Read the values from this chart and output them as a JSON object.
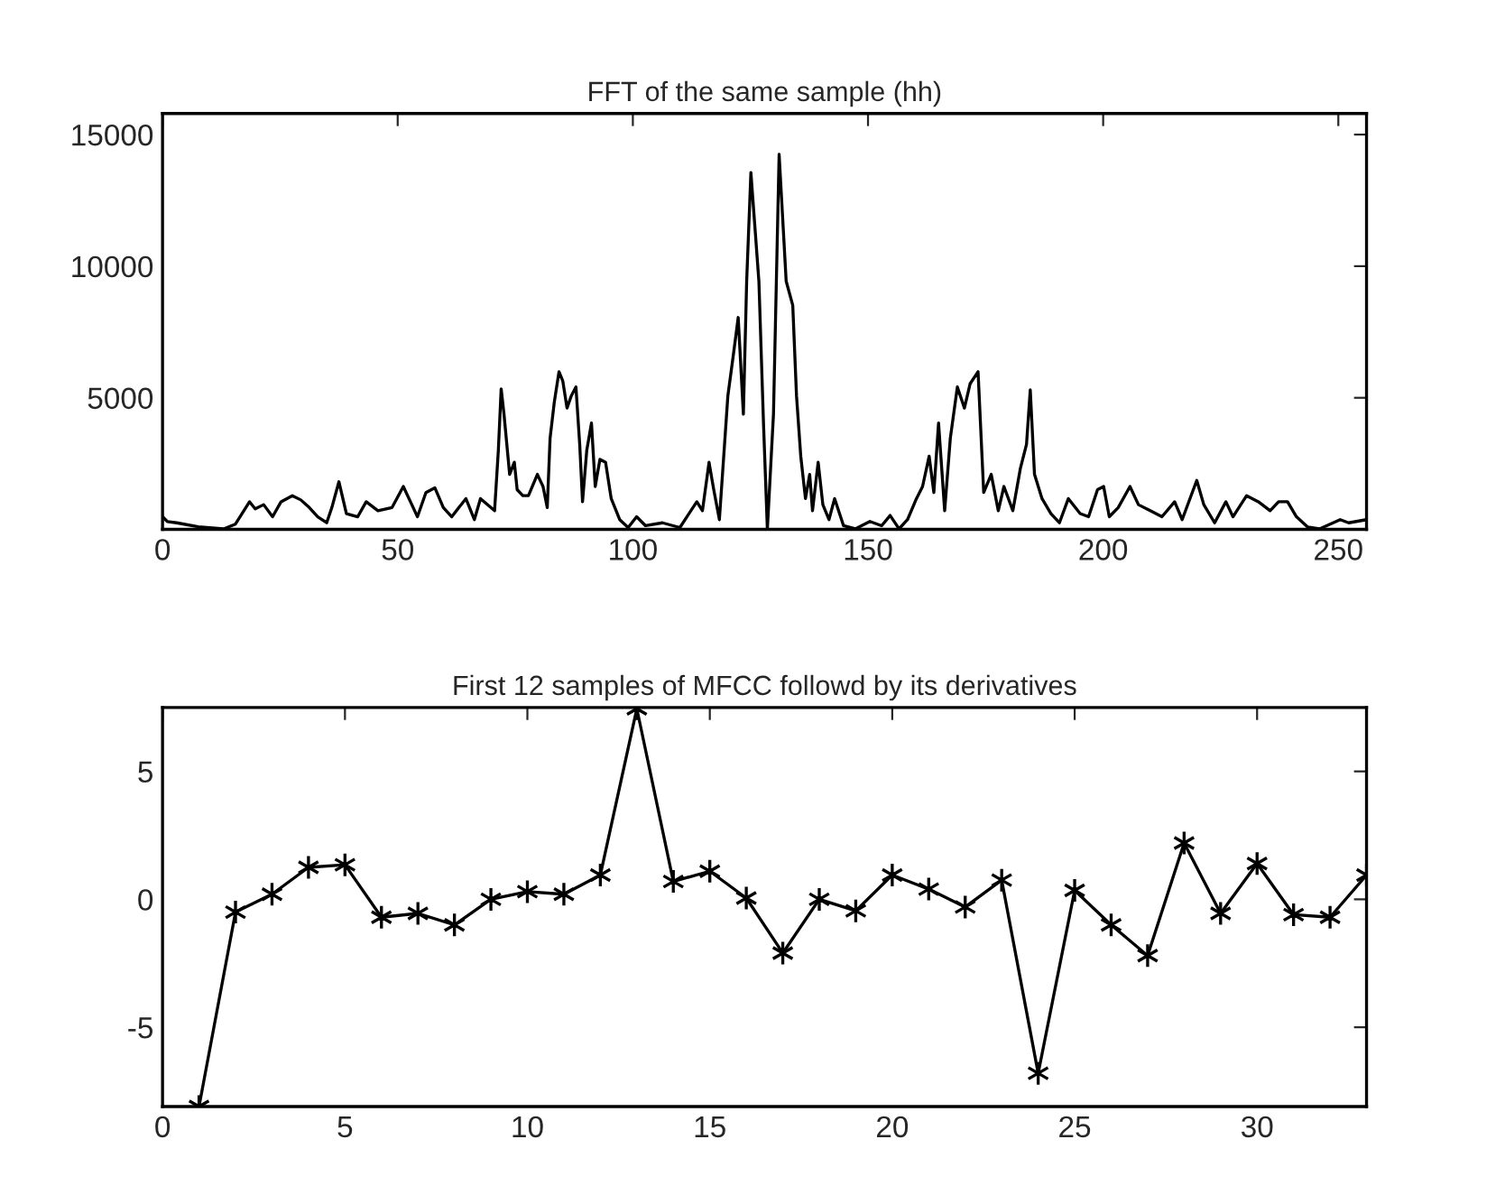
{
  "chart_data": [
    {
      "type": "line",
      "title": "FFT of the same sample (hh)",
      "xlim": [
        0,
        256
      ],
      "xticks": [
        0,
        50,
        100,
        150,
        200,
        250
      ],
      "ylim": [
        0,
        15800
      ],
      "yticks": [
        5000,
        10000,
        15000
      ],
      "grid": false,
      "legend": false,
      "marker": "none",
      "line_style": "solid",
      "series": [
        {
          "color": "#000000",
          "x": [
            0,
            1,
            3,
            7.6,
            13,
            15.5,
            18.5,
            19.7,
            21.5,
            23.4,
            25.2,
            27.6,
            29.4,
            31.2,
            33,
            34.9,
            36,
            37.5,
            39.1,
            41.5,
            43.3,
            45.8,
            48.8,
            51.2,
            53,
            54.2,
            56,
            57.9,
            59.7,
            61.5,
            64.5,
            66.3,
            67.6,
            70.6,
            71.4,
            72,
            72.6,
            73.8,
            74.8,
            75.4,
            76.6,
            77.8,
            79.7,
            80.9,
            81.8,
            82.4,
            83.3,
            84.3,
            85.1,
            86,
            86.9,
            87.9,
            88.7,
            89.3,
            90.2,
            91.2,
            92,
            93,
            94.2,
            95.4,
            97.2,
            99,
            100.8,
            102.7,
            106.3,
            110,
            113.6,
            114.8,
            116.2,
            117.2,
            118.4,
            120.2,
            121.4,
            122.4,
            123.5,
            124.2,
            125.1,
            125.6,
            126.8,
            127.8,
            128.6,
            129.9,
            131.1,
            131.7,
            132.6,
            134,
            134.8,
            135.7,
            136.7,
            137.6,
            138.2,
            139.4,
            140.4,
            141.7,
            142.9,
            144.8,
            147.3,
            150.4,
            152.9,
            154.7,
            156.6,
            158.4,
            160.3,
            161.6,
            163,
            164,
            165,
            166.3,
            167.5,
            169,
            170.5,
            171.7,
            173.4,
            174.6,
            176.2,
            177.7,
            178.9,
            180.8,
            182.4,
            183.7,
            184.5,
            185.4,
            187,
            188.9,
            190.7,
            192.6,
            195.1,
            196.9,
            198.8,
            200.1,
            201.3,
            203.2,
            205.7,
            207.5,
            210,
            212.5,
            215.2,
            216.8,
            219.9,
            221.4,
            223.7,
            226.1,
            227.6,
            230.5,
            233,
            235.5,
            237.3,
            239.2,
            241.1,
            243.5,
            246,
            250.4,
            252.2,
            256
          ],
          "values": [
            480,
            300,
            250,
            100,
            20,
            200,
            1050,
            780,
            940,
            480,
            1050,
            1280,
            1120,
            830,
            480,
            250,
            830,
            1810,
            600,
            480,
            1050,
            710,
            830,
            1630,
            940,
            480,
            1400,
            1580,
            830,
            480,
            1170,
            370,
            1170,
            710,
            3000,
            5340,
            4380,
            2090,
            2550,
            1510,
            1280,
            1280,
            2090,
            1630,
            830,
            3460,
            4840,
            5990,
            5640,
            4610,
            5070,
            5410,
            3230,
            1050,
            3000,
            4040,
            1630,
            2660,
            2550,
            1170,
            370,
            70,
            480,
            140,
            250,
            70,
            1050,
            710,
            2550,
            1510,
            370,
            5070,
            6670,
            8050,
            4380,
            9430,
            13560,
            null,
            9430,
            3920,
            0,
            4380,
            14250,
            null,
            9430,
            8510,
            5070,
            2780,
            1170,
            2090,
            710,
            2550,
            940,
            370,
            1170,
            140,
            20,
            300,
            140,
            530,
            20,
            370,
            1170,
            1630,
            2780,
            1400,
            4040,
            710,
            3460,
            5410,
            4610,
            5530,
            5990,
            1400,
            2090,
            710,
            1630,
            710,
            2320,
            3230,
            5300,
            2090,
            1170,
            600,
            250,
            1170,
            600,
            480,
            1510,
            1630,
            480,
            830,
            1630,
            940,
            710,
            480,
            1050,
            370,
            1860,
            940,
            250,
            1050,
            480,
            1280,
            1050,
            710,
            1050,
            1050,
            480,
            90,
            20,
            370,
            250,
            370
          ]
        }
      ]
    },
    {
      "type": "line",
      "title": "First 12 samples of MFCC followd by its derivatives",
      "xlim": [
        0,
        33
      ],
      "xticks": [
        0,
        5,
        10,
        15,
        20,
        25,
        30
      ],
      "ylim": [
        -8.1,
        7.5
      ],
      "yticks": [
        -5,
        0,
        5
      ],
      "grid": false,
      "legend": false,
      "marker": "cross",
      "line_style": "solid",
      "series": [
        {
          "color": "#000000",
          "x": [
            1,
            2,
            3,
            4,
            5,
            6,
            7,
            8,
            9,
            10,
            11,
            12,
            13,
            14,
            15,
            16,
            17,
            18,
            19,
            20,
            21,
            22,
            23,
            24,
            25,
            26,
            27,
            28,
            29,
            30,
            31,
            32,
            33
          ],
          "values": [
            -8.1,
            -0.5,
            0.2,
            1.25,
            1.35,
            -0.7,
            -0.55,
            -1.0,
            0,
            0.3,
            0.2,
            0.95,
            7.45,
            0.7,
            1.1,
            0.05,
            -2.1,
            0,
            -0.45,
            0.95,
            0.4,
            -0.3,
            0.75,
            -6.8,
            0.35,
            -1.0,
            -2.2,
            2.2,
            -0.55,
            1.4,
            -0.6,
            -0.7,
            0.95
          ]
        }
      ]
    }
  ]
}
